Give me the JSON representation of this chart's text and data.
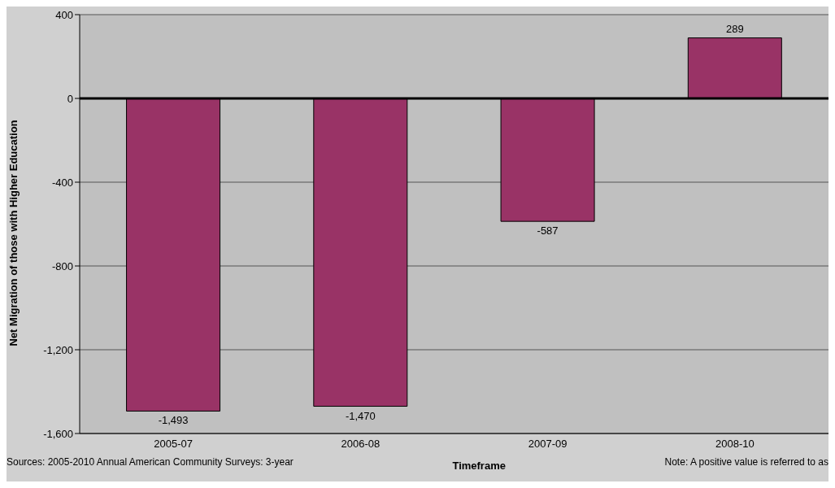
{
  "chart_data": {
    "type": "bar",
    "categories": [
      "2005-07",
      "2006-08",
      "2007-09",
      "2008-10"
    ],
    "values": [
      -1493,
      -1470,
      -587,
      289
    ],
    "value_labels": [
      "-1,493",
      "-1,470",
      "-587",
      "289"
    ],
    "color": "#993366",
    "xlabel": "Timeframe",
    "ylabel": "Net Migration of those with Higher Education",
    "ylim": [
      -1600,
      400
    ],
    "yticks": [
      {
        "value": -1600,
        "label": "-1,600"
      },
      {
        "value": -1200,
        "label": "-1,200"
      },
      {
        "value": -800,
        "label": "-800"
      },
      {
        "value": -400,
        "label": "-400"
      },
      0,
      400
    ],
    "grid": "y",
    "ref_lines": [
      {
        "axis": "y",
        "value": 0,
        "color": "#000000"
      }
    ],
    "annotations": [
      "Sources: 2005-2010 Annual American Community Surveys: 3-year",
      "Note: A positive value is referred to as"
    ]
  }
}
